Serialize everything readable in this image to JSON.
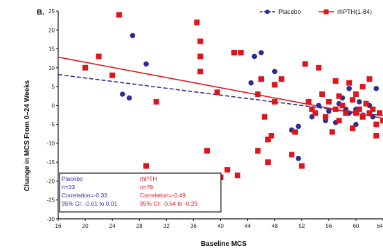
{
  "panel_label": "B.",
  "chart_data": {
    "type": "scatter",
    "xlabel": "Baseline MCS",
    "ylabel": "Change in MCS From 0–24 Weeks",
    "xlim": [
      16,
      64
    ],
    "ylim": [
      -30,
      25
    ],
    "xticks": [
      "16",
      "20",
      "24",
      "28",
      "32",
      "36",
      "40",
      "44",
      "48",
      "52",
      "56",
      "60",
      "64"
    ],
    "yticks": [
      "25",
      "20",
      "15",
      "10",
      "5",
      "0",
      "-5",
      "-10",
      "-15",
      "-20",
      "-25",
      "-30"
    ],
    "legend_position": "top-right",
    "series": [
      {
        "name": "Placebo",
        "color": "#2b2f8f",
        "marker": "circle",
        "line": "dashed",
        "fit": [
          [
            16,
            8.2
          ],
          [
            64,
            -2.7
          ]
        ],
        "points": [
          [
            25.5,
            3
          ],
          [
            26.5,
            2
          ],
          [
            27,
            18.5
          ],
          [
            29,
            11
          ],
          [
            44.5,
            6
          ],
          [
            45,
            13
          ],
          [
            46,
            14
          ],
          [
            48,
            9
          ],
          [
            50.5,
            -6.5
          ],
          [
            51.5,
            -5.5
          ],
          [
            51.5,
            -14
          ],
          [
            53.5,
            -3
          ],
          [
            54.5,
            0
          ],
          [
            55.5,
            -4
          ],
          [
            56,
            -1.5
          ],
          [
            57,
            -4.5
          ],
          [
            57.5,
            0.5
          ],
          [
            58,
            2
          ],
          [
            58.5,
            -1
          ],
          [
            59,
            4.5
          ],
          [
            59,
            -2
          ],
          [
            60,
            -1
          ],
          [
            60,
            -5
          ],
          [
            60.5,
            1
          ],
          [
            61,
            -3
          ],
          [
            62,
            0
          ],
          [
            62.5,
            -3
          ],
          [
            63,
            4.5
          ],
          [
            63.5,
            -2
          ]
        ]
      },
      {
        "name": "rhPTH(1-84)",
        "color": "#e0141c",
        "marker": "square",
        "line": "solid",
        "fit": [
          [
            16,
            12.8
          ],
          [
            64,
            -3.4
          ]
        ],
        "points": [
          [
            20,
            10
          ],
          [
            22,
            13
          ],
          [
            24,
            8
          ],
          [
            25,
            24
          ],
          [
            29,
            -16
          ],
          [
            30.5,
            1
          ],
          [
            36.5,
            22
          ],
          [
            37,
            17
          ],
          [
            37,
            13
          ],
          [
            37,
            9
          ],
          [
            38,
            -12
          ],
          [
            39.5,
            3.5
          ],
          [
            40,
            -19
          ],
          [
            41,
            -17
          ],
          [
            42,
            14
          ],
          [
            42.5,
            -18.5
          ],
          [
            43,
            14
          ],
          [
            45.5,
            3
          ],
          [
            45.5,
            -12
          ],
          [
            46,
            7
          ],
          [
            46.5,
            -3
          ],
          [
            47,
            -9
          ],
          [
            47,
            -15
          ],
          [
            47.5,
            -8
          ],
          [
            48,
            5.5
          ],
          [
            48,
            1
          ],
          [
            49,
            7
          ],
          [
            50.5,
            -13
          ],
          [
            51,
            -7
          ],
          [
            52,
            -16
          ],
          [
            52.5,
            11
          ],
          [
            53,
            1
          ],
          [
            53.5,
            -1
          ],
          [
            54,
            -2
          ],
          [
            54.5,
            10
          ],
          [
            55,
            3
          ],
          [
            55.5,
            -3
          ],
          [
            56,
            1
          ],
          [
            56.5,
            -7
          ],
          [
            57,
            6.5
          ],
          [
            57,
            -1
          ],
          [
            57.5,
            2.5
          ],
          [
            57.5,
            -4
          ],
          [
            58,
            0
          ],
          [
            58.5,
            -2
          ],
          [
            59,
            6
          ],
          [
            59.5,
            1.5
          ],
          [
            59.5,
            -6
          ],
          [
            60,
            3
          ],
          [
            60,
            -2
          ],
          [
            60.5,
            -1
          ],
          [
            61,
            5
          ],
          [
            61,
            -3
          ],
          [
            61.5,
            0.5
          ],
          [
            62,
            7
          ],
          [
            62,
            -2
          ],
          [
            62.5,
            -1
          ],
          [
            63,
            -5
          ],
          [
            63,
            -8
          ],
          [
            63.5,
            -2
          ],
          [
            64,
            -4
          ]
        ]
      }
    ]
  },
  "legend": {
    "placebo": "Placebo",
    "rhpth": "rhPTH(1-84)"
  },
  "stats_box": {
    "placebo_lines": [
      "Placebo",
      "n=33",
      "Correlation=-0.33",
      "95% CI: -0.61 to 0.01"
    ],
    "rhpth_lines": [
      "rhPTH",
      "n=78",
      "Correlation=-0.49",
      "95% CI: -0.64 to -0.29"
    ]
  }
}
